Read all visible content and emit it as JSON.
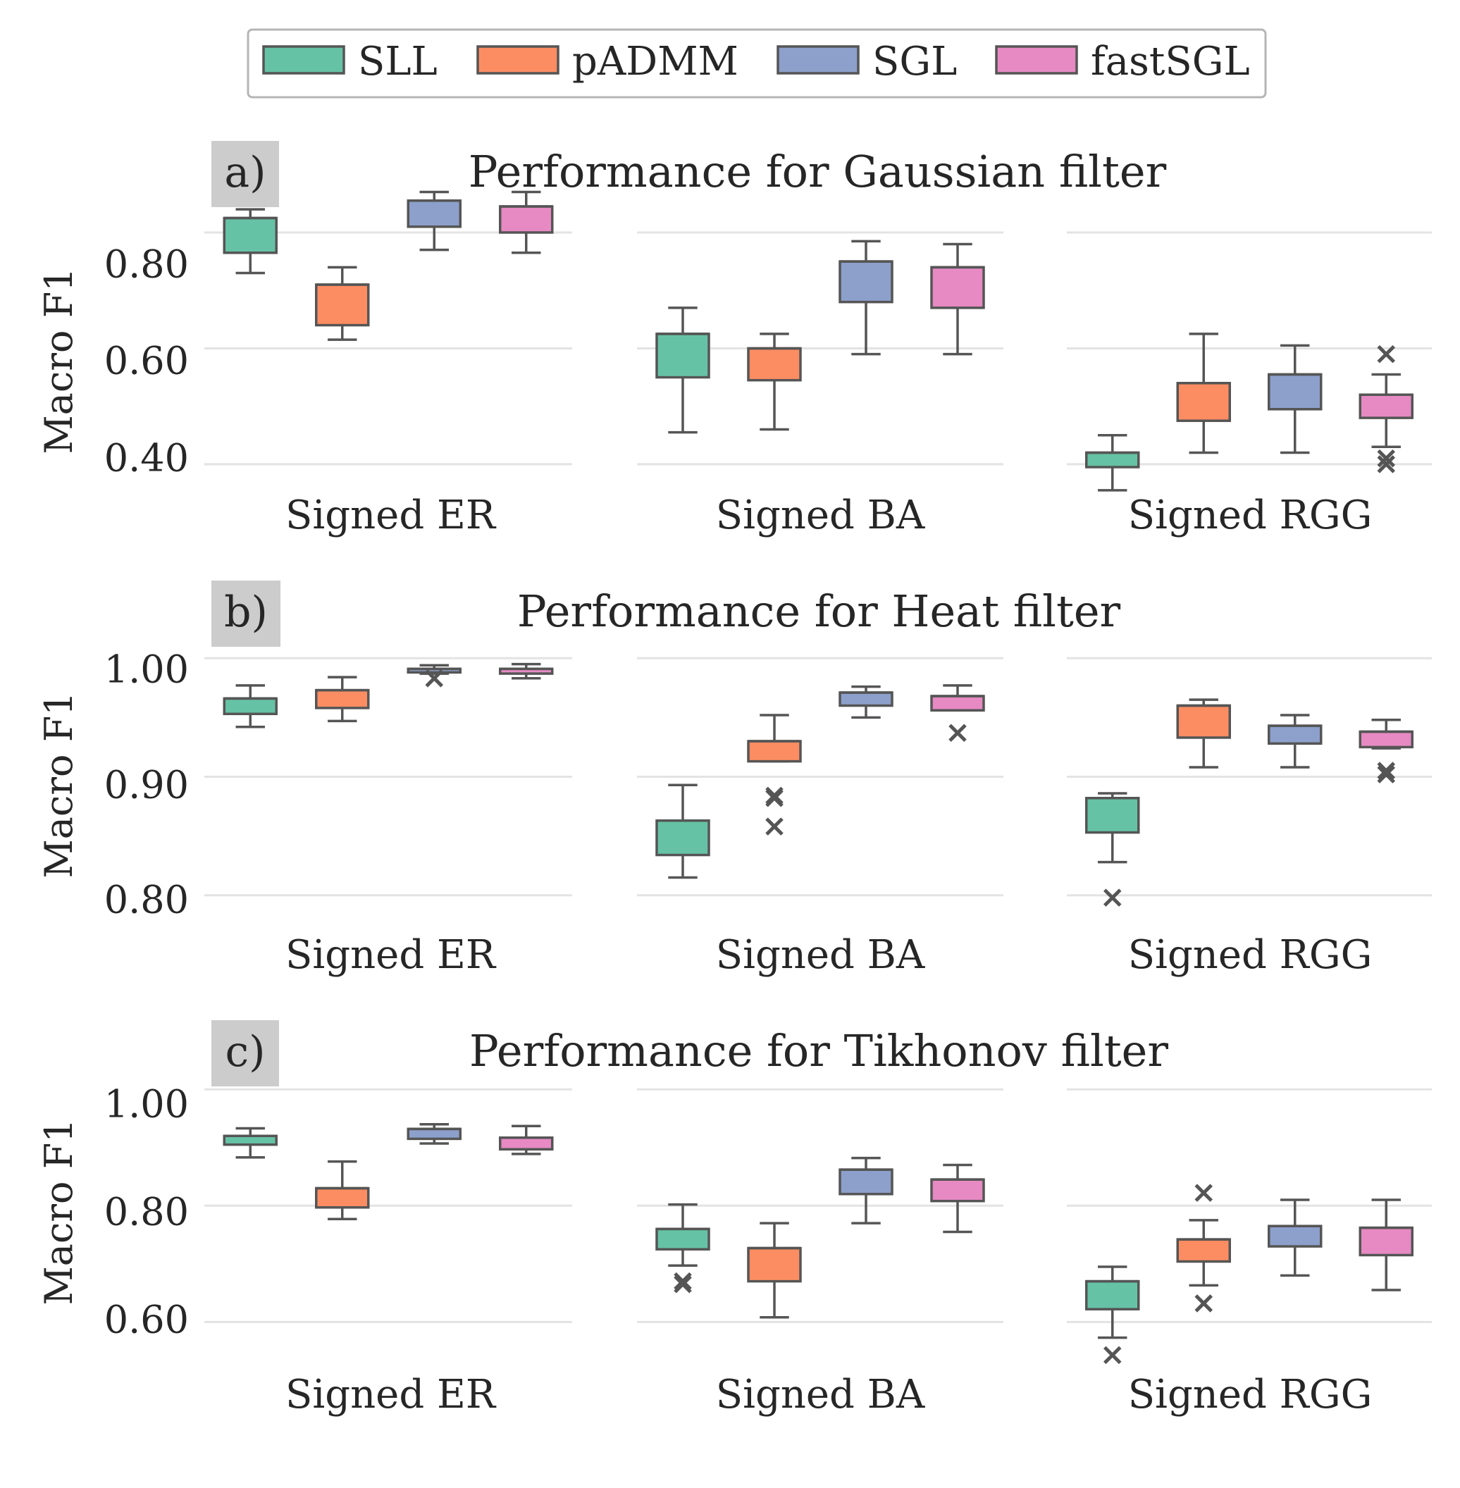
{
  "legend": {
    "items": [
      {
        "label": "SLL",
        "color": "#66c2a5"
      },
      {
        "label": "pADMM",
        "color": "#fc8d62"
      },
      {
        "label": "SGL",
        "color": "#8da0cb"
      },
      {
        "label": "fastSGL",
        "color": "#e78ac3"
      }
    ]
  },
  "chart_data": [
    {
      "type": "box",
      "tag": "a)",
      "title": "Performance for Gaussian filter",
      "ylabel": "Macro F1",
      "ylim": [
        0.35,
        0.89
      ],
      "yticks": [
        0.4,
        0.6,
        0.8
      ],
      "ytick_labels": [
        "0.40",
        "0.60",
        "0.80"
      ],
      "grid": true,
      "groups": [
        {
          "label": "Signed ER",
          "boxes": [
            {
              "series": "SLL",
              "whislo": 0.73,
              "q1": 0.765,
              "med": 0.825,
              "q3": 0.825,
              "whishi": 0.84,
              "outliers": []
            },
            {
              "series": "pADMM",
              "whislo": 0.615,
              "q1": 0.64,
              "med": 0.71,
              "q3": 0.71,
              "whishi": 0.74,
              "outliers": []
            },
            {
              "series": "SGL",
              "whislo": 0.77,
              "q1": 0.81,
              "med": 0.855,
              "q3": 0.855,
              "whishi": 0.87,
              "outliers": []
            },
            {
              "series": "fastSGL",
              "whislo": 0.765,
              "q1": 0.8,
              "med": 0.845,
              "q3": 0.845,
              "whishi": 0.87,
              "outliers": []
            }
          ]
        },
        {
          "label": "Signed BA",
          "boxes": [
            {
              "series": "SLL",
              "whislo": 0.455,
              "q1": 0.55,
              "med": 0.625,
              "q3": 0.625,
              "whishi": 0.67,
              "outliers": []
            },
            {
              "series": "pADMM",
              "whislo": 0.46,
              "q1": 0.545,
              "med": 0.6,
              "q3": 0.6,
              "whishi": 0.625,
              "outliers": []
            },
            {
              "series": "SGL",
              "whislo": 0.59,
              "q1": 0.68,
              "med": 0.75,
              "q3": 0.75,
              "whishi": 0.785,
              "outliers": []
            },
            {
              "series": "fastSGL",
              "whislo": 0.59,
              "q1": 0.67,
              "med": 0.74,
              "q3": 0.74,
              "whishi": 0.78,
              "outliers": []
            }
          ]
        },
        {
          "label": "Signed RGG",
          "boxes": [
            {
              "series": "SLL",
              "whislo": 0.355,
              "q1": 0.395,
              "med": 0.42,
              "q3": 0.42,
              "whishi": 0.45,
              "outliers": []
            },
            {
              "series": "pADMM",
              "whislo": 0.42,
              "q1": 0.475,
              "med": 0.54,
              "q3": 0.54,
              "whishi": 0.625,
              "outliers": []
            },
            {
              "series": "SGL",
              "whislo": 0.42,
              "q1": 0.495,
              "med": 0.555,
              "q3": 0.555,
              "whishi": 0.605,
              "outliers": []
            },
            {
              "series": "fastSGL",
              "whislo": 0.43,
              "q1": 0.48,
              "med": 0.52,
              "q3": 0.52,
              "whishi": 0.555,
              "outliers": [
                0.59,
                0.41,
                0.4
              ]
            }
          ]
        }
      ]
    },
    {
      "type": "box",
      "tag": "b)",
      "title": "Performance for Heat filter",
      "ylabel": "Macro F1",
      "ylim": [
        0.785,
        1.012
      ],
      "yticks": [
        0.8,
        0.9,
        1.0
      ],
      "ytick_labels": [
        "0.80",
        "0.90",
        "1.00"
      ],
      "grid": true,
      "groups": [
        {
          "label": "Signed ER",
          "boxes": [
            {
              "series": "SLL",
              "whislo": 0.942,
              "q1": 0.953,
              "med": 0.966,
              "q3": 0.966,
              "whishi": 0.977,
              "outliers": []
            },
            {
              "series": "pADMM",
              "whislo": 0.947,
              "q1": 0.958,
              "med": 0.973,
              "q3": 0.973,
              "whishi": 0.984,
              "outliers": []
            },
            {
              "series": "SGL",
              "whislo": 0.987,
              "q1": 0.988,
              "med": 0.991,
              "q3": 0.991,
              "whishi": 0.994,
              "outliers": [
                0.983
              ]
            },
            {
              "series": "fastSGL",
              "whislo": 0.983,
              "q1": 0.987,
              "med": 0.991,
              "q3": 0.991,
              "whishi": 0.995,
              "outliers": []
            }
          ]
        },
        {
          "label": "Signed BA",
          "boxes": [
            {
              "series": "SLL",
              "whislo": 0.815,
              "q1": 0.834,
              "med": 0.863,
              "q3": 0.863,
              "whishi": 0.893,
              "outliers": []
            },
            {
              "series": "pADMM",
              "whislo": 0.913,
              "q1": 0.913,
              "med": 0.93,
              "q3": 0.93,
              "whishi": 0.952,
              "outliers": [
                0.884,
                0.882,
                0.858
              ]
            },
            {
              "series": "SGL",
              "whislo": 0.95,
              "q1": 0.96,
              "med": 0.971,
              "q3": 0.971,
              "whishi": 0.976,
              "outliers": []
            },
            {
              "series": "fastSGL",
              "whislo": 0.956,
              "q1": 0.956,
              "med": 0.968,
              "q3": 0.968,
              "whishi": 0.977,
              "outliers": [
                0.937
              ]
            }
          ]
        },
        {
          "label": "Signed RGG",
          "boxes": [
            {
              "series": "SLL",
              "whislo": 0.828,
              "q1": 0.853,
              "med": 0.882,
              "q3": 0.882,
              "whishi": 0.886,
              "outliers": [
                0.798
              ]
            },
            {
              "series": "pADMM",
              "whislo": 0.908,
              "q1": 0.933,
              "med": 0.96,
              "q3": 0.96,
              "whishi": 0.965,
              "outliers": []
            },
            {
              "series": "SGL",
              "whislo": 0.908,
              "q1": 0.928,
              "med": 0.943,
              "q3": 0.943,
              "whishi": 0.952,
              "outliers": []
            },
            {
              "series": "fastSGL",
              "whislo": 0.924,
              "q1": 0.925,
              "med": 0.938,
              "q3": 0.938,
              "whishi": 0.948,
              "outliers": [
                0.905,
                0.902
              ]
            }
          ]
        }
      ]
    },
    {
      "type": "box",
      "tag": "c)",
      "title": "Performance for Tikhonov filter",
      "ylabel": "Macro F1",
      "ylim": [
        0.535,
        1.01
      ],
      "yticks": [
        0.6,
        0.8,
        1.0
      ],
      "ytick_labels": [
        "0.60",
        "0.80",
        "1.00"
      ],
      "grid": true,
      "groups": [
        {
          "label": "Signed ER",
          "boxes": [
            {
              "series": "SLL",
              "whislo": 0.883,
              "q1": 0.905,
              "med": 0.92,
              "q3": 0.92,
              "whishi": 0.933,
              "outliers": []
            },
            {
              "series": "pADMM",
              "whislo": 0.777,
              "q1": 0.797,
              "med": 0.83,
              "q3": 0.83,
              "whishi": 0.876,
              "outliers": []
            },
            {
              "series": "SGL",
              "whislo": 0.907,
              "q1": 0.915,
              "med": 0.932,
              "q3": 0.932,
              "whishi": 0.94,
              "outliers": []
            },
            {
              "series": "fastSGL",
              "whislo": 0.889,
              "q1": 0.897,
              "med": 0.917,
              "q3": 0.917,
              "whishi": 0.937,
              "outliers": []
            }
          ]
        },
        {
          "label": "Signed BA",
          "boxes": [
            {
              "series": "SLL",
              "whislo": 0.697,
              "q1": 0.725,
              "med": 0.76,
              "q3": 0.76,
              "whishi": 0.802,
              "outliers": [
                0.67,
                0.665
              ]
            },
            {
              "series": "pADMM",
              "whislo": 0.608,
              "q1": 0.67,
              "med": 0.727,
              "q3": 0.727,
              "whishi": 0.77,
              "outliers": []
            },
            {
              "series": "SGL",
              "whislo": 0.77,
              "q1": 0.82,
              "med": 0.862,
              "q3": 0.862,
              "whishi": 0.882,
              "outliers": []
            },
            {
              "series": "fastSGL",
              "whislo": 0.755,
              "q1": 0.808,
              "med": 0.845,
              "q3": 0.845,
              "whishi": 0.87,
              "outliers": []
            }
          ]
        },
        {
          "label": "Signed RGG",
          "boxes": [
            {
              "series": "SLL",
              "whislo": 0.573,
              "q1": 0.622,
              "med": 0.67,
              "q3": 0.67,
              "whishi": 0.695,
              "outliers": [
                0.543
              ]
            },
            {
              "series": "pADMM",
              "whislo": 0.663,
              "q1": 0.704,
              "med": 0.742,
              "q3": 0.742,
              "whishi": 0.775,
              "outliers": [
                0.822,
                0.632
              ]
            },
            {
              "series": "SGL",
              "whislo": 0.68,
              "q1": 0.73,
              "med": 0.765,
              "q3": 0.765,
              "whishi": 0.81,
              "outliers": []
            },
            {
              "series": "fastSGL",
              "whislo": 0.655,
              "q1": 0.715,
              "med": 0.762,
              "q3": 0.762,
              "whishi": 0.81,
              "outliers": []
            }
          ]
        }
      ]
    }
  ]
}
